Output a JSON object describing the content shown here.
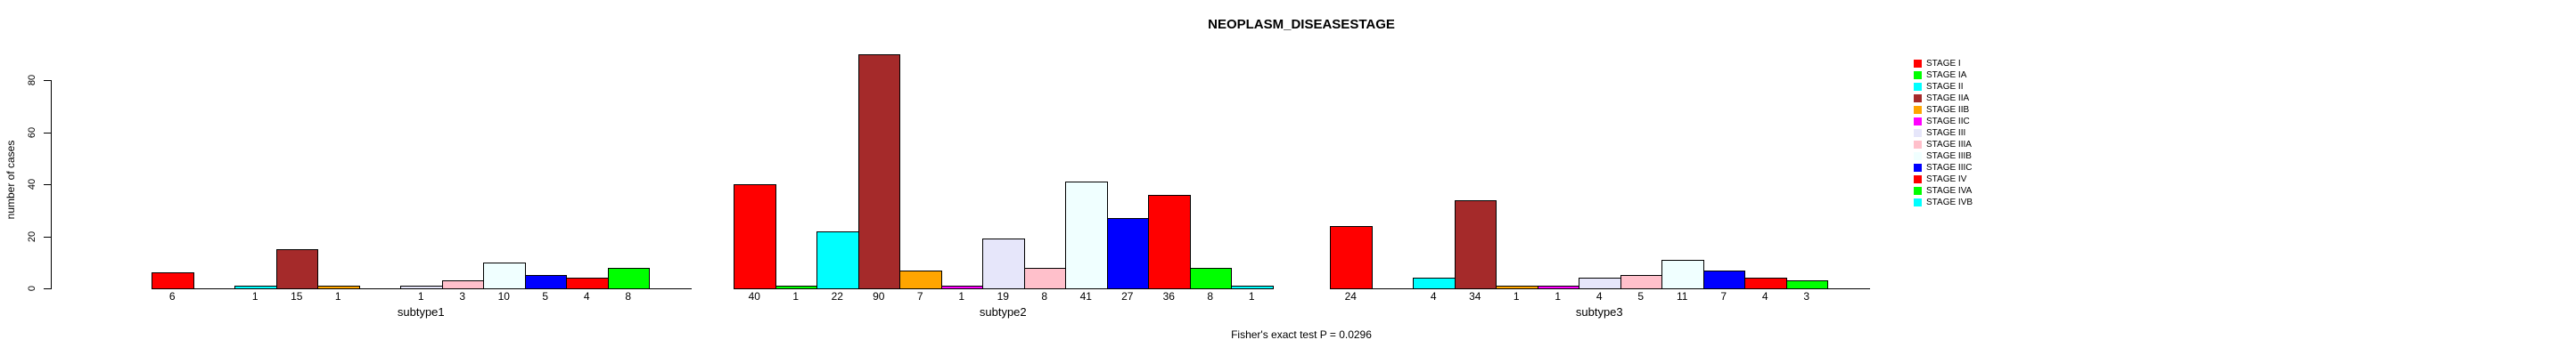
{
  "chart_data": {
    "type": "bar",
    "title": "NEOPLASM_DISEASESTAGE",
    "xlabel": "",
    "ylabel": "number of cases",
    "ylim": [
      0,
      80
    ],
    "yticks": [
      0,
      20,
      40,
      60,
      80
    ],
    "grid": false,
    "legend_position": "right",
    "background_color": "#FFFFFF",
    "bar_border_color": "#000000",
    "categories": [
      "subtype1",
      "subtype2",
      "subtype3"
    ],
    "series": [
      {
        "name": "STAGE I",
        "color": "#FF0000",
        "values": [
          6,
          40,
          24
        ]
      },
      {
        "name": "STAGE IA",
        "color": "#00FF00",
        "values": [
          0,
          1,
          0
        ]
      },
      {
        "name": "STAGE II",
        "color": "#00FFFF",
        "values": [
          1,
          22,
          4
        ]
      },
      {
        "name": "STAGE IIA",
        "color": "#A52A2A",
        "values": [
          15,
          90,
          34
        ]
      },
      {
        "name": "STAGE IIB",
        "color": "#FFA500",
        "values": [
          1,
          7,
          1
        ]
      },
      {
        "name": "STAGE IIC",
        "color": "#FF00FF",
        "values": [
          0,
          1,
          1
        ]
      },
      {
        "name": "STAGE III",
        "color": "#E6E6FA",
        "values": [
          1,
          19,
          4
        ]
      },
      {
        "name": "STAGE IIIA",
        "color": "#FFC0CB",
        "values": [
          3,
          8,
          5
        ]
      },
      {
        "name": "STAGE IIIB",
        "color": "#F0FFFF",
        "values": [
          10,
          41,
          11
        ]
      },
      {
        "name": "STAGE IIIC",
        "color": "#0000FF",
        "values": [
          5,
          27,
          7
        ]
      },
      {
        "name": "STAGE IV",
        "color": "#FF0000",
        "values": [
          4,
          36,
          4
        ]
      },
      {
        "name": "STAGE IVA",
        "color": "#00FF00",
        "values": [
          8,
          8,
          3
        ]
      },
      {
        "name": "STAGE IVB",
        "color": "#00FFFF",
        "values": [
          0,
          1,
          0
        ]
      }
    ],
    "value_labels_shown_for_nonzero_bars": true,
    "annotation": "Fisher's exact test P = 0.0296"
  }
}
